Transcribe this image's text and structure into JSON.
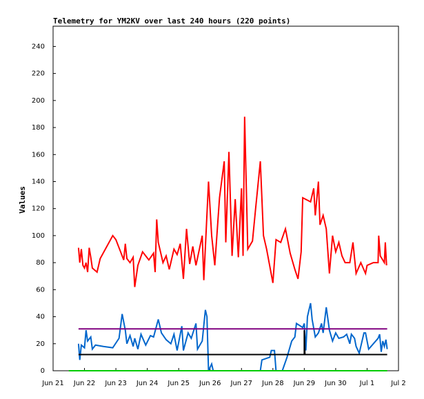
{
  "chart_data": {
    "type": "line",
    "title": "Telemetry for YM2KV over last 240 hours (220 points)",
    "y_label": "Values",
    "xlim": [
      0,
      11
    ],
    "xticks": [
      {
        "value": 0,
        "label": "Jun 21"
      },
      {
        "value": 1,
        "label": "Jun 22"
      },
      {
        "value": 2,
        "label": "Jun 23"
      },
      {
        "value": 3,
        "label": "Jun 24"
      },
      {
        "value": 4,
        "label": "Jun 25"
      },
      {
        "value": 5,
        "label": "Jun 26"
      },
      {
        "value": 6,
        "label": "Jun 27"
      },
      {
        "value": 7,
        "label": "Jun 28"
      },
      {
        "value": 8,
        "label": "Jun 29"
      },
      {
        "value": 9,
        "label": "Jun 30"
      },
      {
        "value": 10,
        "label": "Jul 1"
      },
      {
        "value": 11,
        "label": "Jul 2"
      }
    ],
    "ylim": [
      0,
      255
    ],
    "yticks": [
      0,
      20,
      40,
      60,
      80,
      100,
      120,
      140,
      160,
      180,
      200,
      220,
      240
    ],
    "series": [
      {
        "color": "#ff0000",
        "x": [
          0.81,
          0.85,
          0.9,
          0.95,
          1.0,
          1.05,
          1.1,
          1.15,
          1.2,
          1.25,
          1.4,
          1.5,
          1.9,
          2.0,
          2.15,
          2.25,
          2.3,
          2.35,
          2.45,
          2.55,
          2.6,
          2.7,
          2.85,
          3.05,
          3.2,
          3.25,
          3.3,
          3.35,
          3.5,
          3.6,
          3.7,
          3.85,
          3.95,
          4.05,
          4.15,
          4.25,
          4.35,
          4.45,
          4.55,
          4.75,
          4.8,
          4.95,
          5.05,
          5.15,
          5.3,
          5.45,
          5.5,
          5.6,
          5.7,
          5.8,
          5.9,
          6.0,
          6.05,
          6.1,
          6.2,
          6.35,
          6.45,
          6.6,
          6.7,
          6.8,
          7.0,
          7.1,
          7.25,
          7.4,
          7.55,
          7.7,
          7.8,
          7.9,
          7.95,
          8.2,
          8.3,
          8.35,
          8.45,
          8.5,
          8.6,
          8.7,
          8.8,
          8.9,
          9.0,
          9.1,
          9.2,
          9.3,
          9.45,
          9.55,
          9.65,
          9.8,
          9.95,
          10.0,
          10.2,
          10.35,
          10.37,
          10.42,
          10.55,
          10.58,
          10.62
        ],
        "values": [
          91,
          80,
          90,
          78,
          76,
          80,
          73,
          91,
          84,
          76,
          73,
          83,
          100,
          97,
          88,
          82,
          94,
          83,
          80,
          84,
          62,
          78,
          88,
          82,
          87,
          73,
          112,
          95,
          80,
          85,
          75,
          90,
          86,
          94,
          68,
          105,
          79,
          92,
          78,
          100,
          67,
          140,
          100,
          78,
          128,
          155,
          95,
          162,
          85,
          127,
          84,
          135,
          85,
          188,
          90,
          96,
          120,
          155,
          100,
          90,
          65,
          97,
          95,
          105,
          87,
          75,
          68,
          88,
          128,
          125,
          135,
          115,
          140,
          108,
          115,
          105,
          72,
          100,
          88,
          95,
          85,
          80,
          80,
          95,
          72,
          80,
          72,
          78,
          80,
          80,
          100,
          85,
          80,
          95,
          78
        ]
      },
      {
        "color": "#0066cc",
        "x": [
          0.81,
          0.85,
          0.9,
          1.0,
          1.05,
          1.1,
          1.2,
          1.25,
          1.35,
          1.6,
          1.9,
          2.1,
          2.2,
          2.3,
          2.35,
          2.45,
          2.55,
          2.6,
          2.7,
          2.8,
          2.95,
          3.1,
          3.2,
          3.35,
          3.45,
          3.6,
          3.75,
          3.85,
          3.95,
          4.1,
          4.15,
          4.3,
          4.4,
          4.55,
          4.6,
          4.75,
          4.85,
          4.9,
          4.95,
          5.05,
          5.1,
          6.6,
          6.65,
          6.9,
          6.95,
          7.05,
          7.1,
          7.3,
          7.45,
          7.6,
          7.7,
          7.75,
          7.95,
          8.0,
          8.05,
          8.1,
          8.2,
          8.25,
          8.35,
          8.45,
          8.55,
          8.6,
          8.7,
          8.8,
          8.9,
          9.0,
          9.1,
          9.25,
          9.35,
          9.45,
          9.5,
          9.6,
          9.65,
          9.75,
          9.8,
          9.9,
          9.95,
          10.0,
          10.05,
          10.2,
          10.35,
          10.4,
          10.45,
          10.5,
          10.55,
          10.6,
          10.64
        ],
        "values": [
          20,
          8,
          19,
          17,
          30,
          22,
          25,
          16,
          19,
          18,
          17,
          24,
          42,
          30,
          20,
          26,
          18,
          24,
          16,
          27,
          19,
          26,
          25,
          38,
          28,
          23,
          20,
          27,
          15,
          33,
          15,
          28,
          24,
          35,
          16,
          22,
          45,
          40,
          0,
          5,
          0,
          0,
          8,
          10,
          15,
          15,
          0,
          0,
          10,
          22,
          25,
          35,
          32,
          35,
          15,
          40,
          50,
          38,
          25,
          28,
          35,
          28,
          47,
          30,
          22,
          28,
          24,
          25,
          27,
          20,
          27,
          24,
          18,
          13,
          18,
          28,
          28,
          22,
          16,
          20,
          24,
          27,
          14,
          22,
          18,
          23,
          16
        ]
      },
      {
        "color": "#800080",
        "x": [
          0.81,
          10.64
        ],
        "values": [
          31,
          31
        ]
      },
      {
        "color": "#000000",
        "x": [
          0.81,
          8.0,
          8.0,
          8.02,
          10.64
        ],
        "values": [
          12,
          12,
          30,
          12,
          12
        ]
      },
      {
        "color": "#00cc00",
        "x": [
          0.5,
          10.64
        ],
        "values": [
          0,
          0
        ]
      }
    ]
  }
}
